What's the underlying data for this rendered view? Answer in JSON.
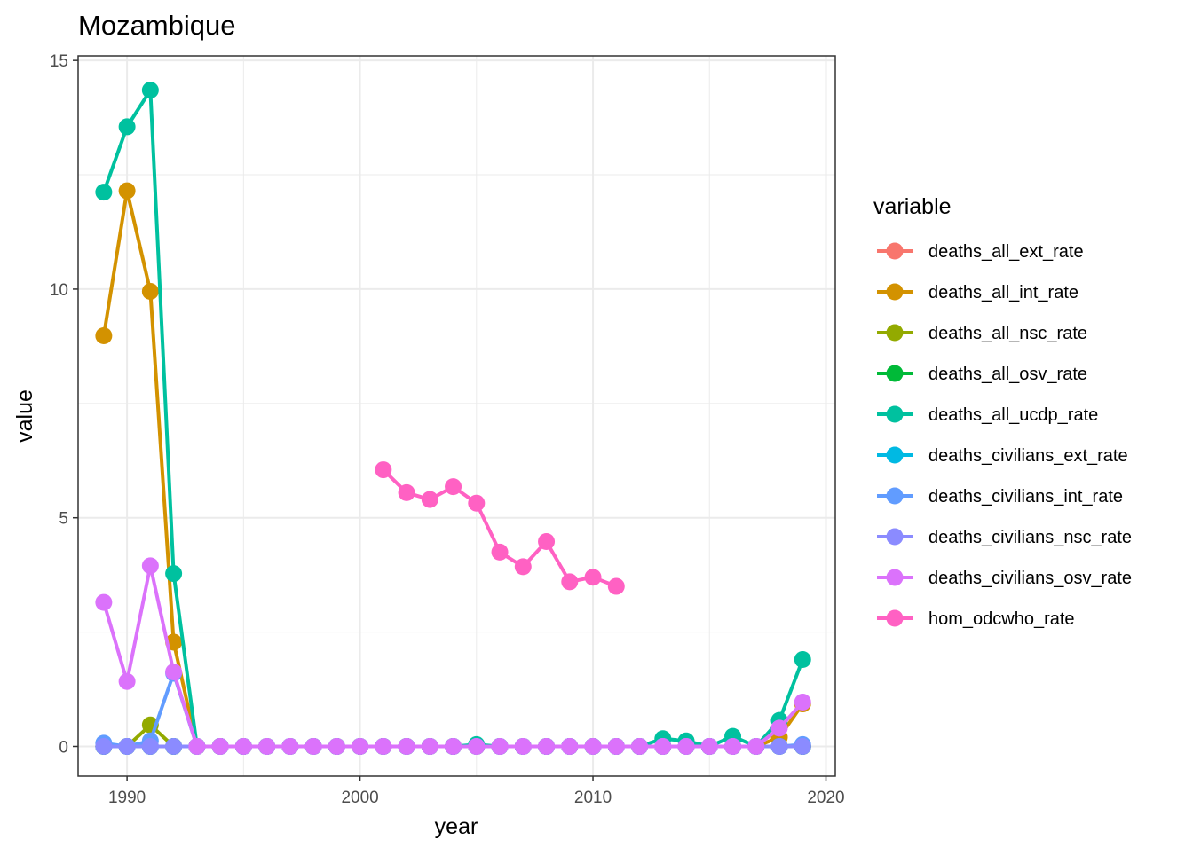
{
  "chart_data": {
    "type": "line",
    "title": "Mozambique",
    "xlabel": "year",
    "ylabel": "value",
    "xlim": [
      1987.9,
      2020.4
    ],
    "ylim": [
      -0.65,
      15.1
    ],
    "x_ticks": [
      1990,
      2000,
      2010,
      2020
    ],
    "y_ticks": [
      0,
      5,
      10,
      15
    ],
    "grid": true,
    "legend_title": "variable",
    "legend_position": "right",
    "series": [
      {
        "name": "deaths_all_ext_rate",
        "color": "#F8766D",
        "x": [
          1989,
          1990,
          1991,
          1992,
          1993,
          1994,
          1995,
          1996,
          1997,
          1998,
          1999,
          2000,
          2001,
          2002,
          2003,
          2004,
          2005,
          2006,
          2007,
          2008,
          2009,
          2010,
          2011,
          2012,
          2013,
          2014,
          2015,
          2016,
          2017,
          2018,
          2019
        ],
        "y": [
          0,
          0,
          0,
          0,
          0,
          0,
          0,
          0,
          0,
          0,
          0,
          0,
          0,
          0,
          0,
          0,
          0,
          0,
          0,
          0,
          0,
          0,
          0,
          0,
          0,
          0,
          0,
          0,
          0,
          0,
          0
        ]
      },
      {
        "name": "deaths_all_int_rate",
        "color": "#D39200",
        "x": [
          1989,
          1990,
          1991,
          1992,
          1993,
          1994,
          1995,
          1996,
          1997,
          1998,
          1999,
          2000,
          2001,
          2002,
          2003,
          2004,
          2005,
          2006,
          2007,
          2008,
          2009,
          2010,
          2011,
          2012,
          2013,
          2014,
          2015,
          2016,
          2017,
          2018,
          2019
        ],
        "y": [
          8.98,
          12.15,
          9.95,
          2.28,
          0,
          0,
          0,
          0,
          0,
          0,
          0,
          0,
          0,
          0,
          0,
          0,
          0,
          0,
          0,
          0,
          0,
          0,
          0,
          0,
          0,
          0,
          0,
          0,
          0,
          0.2,
          0.93
        ]
      },
      {
        "name": "deaths_all_nsc_rate",
        "color": "#93AA00",
        "x": [
          1989,
          1990,
          1991,
          1992,
          1993,
          1994,
          1995,
          1996,
          1997,
          1998,
          1999,
          2000,
          2001,
          2002,
          2003,
          2004,
          2005,
          2006,
          2007,
          2008,
          2009,
          2010,
          2011,
          2012,
          2013,
          2014,
          2015,
          2016,
          2017,
          2018,
          2019
        ],
        "y": [
          0,
          0,
          0.47,
          0,
          0,
          0,
          0,
          0,
          0,
          0,
          0,
          0,
          0,
          0,
          0,
          0,
          0,
          0,
          0,
          0,
          0,
          0,
          0,
          0,
          0,
          0,
          0,
          0,
          0,
          0,
          0
        ]
      },
      {
        "name": "deaths_all_osv_rate",
        "color": "#00BA38",
        "x": [
          1989,
          1990,
          1991,
          1992,
          1993,
          1994,
          1995,
          1996,
          1997,
          1998,
          1999,
          2000,
          2001,
          2002,
          2003,
          2004,
          2005,
          2006,
          2007,
          2008,
          2009,
          2010,
          2011,
          2012,
          2013,
          2014,
          2015,
          2016,
          2017,
          2018,
          2019
        ],
        "y": [
          0,
          0,
          0,
          0,
          0,
          0,
          0,
          0,
          0,
          0,
          0,
          0,
          0,
          0,
          0,
          0,
          0,
          0,
          0,
          0,
          0,
          0,
          0,
          0,
          0,
          0,
          0,
          0,
          0,
          0,
          0
        ]
      },
      {
        "name": "deaths_all_ucdp_rate",
        "color": "#00C19F",
        "x": [
          1989,
          1990,
          1991,
          1992,
          1993,
          1994,
          1995,
          1996,
          1997,
          1998,
          1999,
          2000,
          2001,
          2002,
          2003,
          2004,
          2005,
          2006,
          2007,
          2008,
          2009,
          2010,
          2011,
          2012,
          2013,
          2014,
          2015,
          2016,
          2017,
          2018,
          2019
        ],
        "y": [
          12.12,
          13.55,
          14.35,
          3.78,
          0,
          0,
          0,
          0,
          0,
          0,
          0,
          0,
          0,
          0,
          0,
          0,
          0.04,
          0,
          0,
          0,
          0,
          0,
          0,
          0,
          0.17,
          0.12,
          0,
          0.22,
          0,
          0.57,
          1.9
        ]
      },
      {
        "name": "deaths_civilians_ext_rate",
        "color": "#00B9E3",
        "x": [
          1989,
          1990,
          1991,
          1992,
          1993,
          1994,
          1995,
          1996,
          1997,
          1998,
          1999,
          2000,
          2001,
          2002,
          2003,
          2004,
          2005,
          2006,
          2007,
          2008,
          2009,
          2010,
          2011,
          2012,
          2013,
          2014,
          2015,
          2016,
          2017,
          2018,
          2019
        ],
        "y": [
          0,
          0,
          0,
          0,
          0,
          0,
          0,
          0,
          0,
          0,
          0,
          0,
          0,
          0,
          0,
          0,
          0,
          0,
          0,
          0,
          0,
          0,
          0,
          0,
          0,
          0,
          0,
          0,
          0,
          0,
          0
        ]
      },
      {
        "name": "deaths_civilians_int_rate",
        "color": "#619CFF",
        "x": [
          1989,
          1990,
          1991,
          1992,
          1993,
          1994,
          1995,
          1996,
          1997,
          1998,
          1999,
          2000,
          2001,
          2002,
          2003,
          2004,
          2005,
          2006,
          2007,
          2008,
          2009,
          2010,
          2011,
          2012,
          2013,
          2014,
          2015,
          2016,
          2017,
          2018,
          2019
        ],
        "y": [
          0.07,
          0,
          0.12,
          1.6,
          0,
          0,
          0,
          0,
          0,
          0,
          0,
          0,
          0,
          0,
          0,
          0,
          0,
          0,
          0,
          0,
          0,
          0,
          0,
          0,
          0,
          0,
          0,
          0,
          0,
          0,
          0.04
        ]
      },
      {
        "name": "deaths_civilians_nsc_rate",
        "color": "#8B8BFF",
        "x": [
          1989,
          1990,
          1991,
          1992,
          1993,
          1994,
          1995,
          1996,
          1997,
          1998,
          1999,
          2000,
          2001,
          2002,
          2003,
          2004,
          2005,
          2006,
          2007,
          2008,
          2009,
          2010,
          2011,
          2012,
          2013,
          2014,
          2015,
          2016,
          2017,
          2018,
          2019
        ],
        "y": [
          0,
          0,
          0,
          0,
          0,
          0,
          0,
          0,
          0,
          0,
          0,
          0,
          0,
          0,
          0,
          0,
          0,
          0,
          0,
          0,
          0,
          0,
          0,
          0,
          0,
          0,
          0,
          0,
          0,
          0,
          0
        ]
      },
      {
        "name": "deaths_civilians_osv_rate",
        "color": "#DB72FB",
        "x": [
          1989,
          1990,
          1991,
          1992,
          1993,
          1994,
          1995,
          1996,
          1997,
          1998,
          1999,
          2000,
          2001,
          2002,
          2003,
          2004,
          2005,
          2006,
          2007,
          2008,
          2009,
          2010,
          2011,
          2012,
          2013,
          2014,
          2015,
          2016,
          2017,
          2018,
          2019
        ],
        "y": [
          3.15,
          1.42,
          3.95,
          1.63,
          0,
          0,
          0,
          0,
          0,
          0,
          0,
          0,
          0,
          0,
          0,
          0,
          0,
          0,
          0,
          0,
          0,
          0,
          0,
          0,
          0,
          0,
          0,
          0,
          0,
          0.4,
          0.97
        ]
      },
      {
        "name": "hom_odcwho_rate",
        "color": "#FF61C3",
        "x": [
          2001,
          2002,
          2003,
          2004,
          2005,
          2006,
          2007,
          2008,
          2009,
          2010,
          2011
        ],
        "y": [
          6.05,
          5.55,
          5.4,
          5.68,
          5.32,
          4.25,
          3.93,
          4.48,
          3.6,
          3.7,
          3.5
        ]
      }
    ]
  }
}
